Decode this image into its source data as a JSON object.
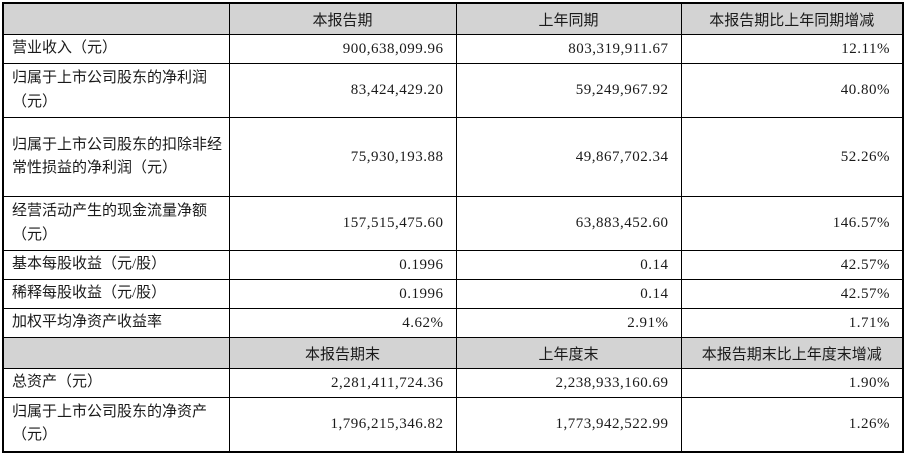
{
  "colors": {
    "header_bg": "#d3d3d3",
    "border": "#000000",
    "text": "#1a1a1a",
    "row_bg": "#ffffff"
  },
  "table": {
    "section_period": {
      "headers": {
        "col1": "",
        "col2": "本报告期",
        "col3": "上年同期",
        "col4": "本报告期比上年同期增减"
      },
      "rows": [
        {
          "label": "营业收入（元）",
          "current": "900,638,099.96",
          "prior": "803,319,911.67",
          "change": "12.11%"
        },
        {
          "label": "归属于上市公司股东的净利润（元）",
          "current": "83,424,429.20",
          "prior": "59,249,967.92",
          "change": "40.80%"
        },
        {
          "label": "归属于上市公司股东的扣除非经常性损益的净利润（元）",
          "current": "75,930,193.88",
          "prior": "49,867,702.34",
          "change": "52.26%"
        },
        {
          "label": "经营活动产生的现金流量净额（元）",
          "current": "157,515,475.60",
          "prior": "63,883,452.60",
          "change": "146.57%"
        },
        {
          "label": "基本每股收益（元/股）",
          "current": "0.1996",
          "prior": "0.14",
          "change": "42.57%"
        },
        {
          "label": "稀释每股收益（元/股）",
          "current": "0.1996",
          "prior": "0.14",
          "change": "42.57%"
        },
        {
          "label": "加权平均净资产收益率",
          "current": "4.62%",
          "prior": "2.91%",
          "change": "1.71%"
        }
      ]
    },
    "section_yearend": {
      "headers": {
        "col1": "",
        "col2": "本报告期末",
        "col3": "上年度末",
        "col4": "本报告期末比上年度末增减"
      },
      "rows": [
        {
          "label": "总资产（元）",
          "current": "2,281,411,724.36",
          "prior": "2,238,933,160.69",
          "change": "1.90%"
        },
        {
          "label": "归属于上市公司股东的净资产（元）",
          "current": "1,796,215,346.82",
          "prior": "1,773,942,522.99",
          "change": "1.26%"
        }
      ]
    }
  }
}
